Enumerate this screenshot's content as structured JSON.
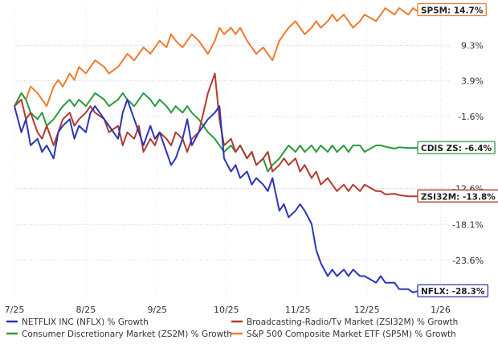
{
  "chart_data": {
    "type": "line",
    "title": "",
    "xlabel": "",
    "ylabel": "",
    "x_ticks": [
      "7/25",
      "8/25",
      "9/25",
      "10/25",
      "11/25",
      "12/25",
      "1/26"
    ],
    "y_ticks": [
      9.3,
      3.9,
      -1.6,
      -12.6,
      -18.1,
      -23.6
    ],
    "y_tick_labels": [
      "9.3%",
      "3.9%",
      "-1.6%",
      "-12.6%",
      "-18.1%",
      "-23.6%"
    ],
    "ylim": [
      -29.5,
      15.5
    ],
    "grid": true,
    "legend_position": "bottom",
    "series": [
      {
        "name": "NETFLIX INC (NFLX) % Growth",
        "color": "#2b35b8",
        "end_label": "NFLX: -28.3%",
        "x": [
          "7/25",
          "7/28",
          "7/30",
          "8/1",
          "8/4",
          "8/6",
          "8/8",
          "8/11",
          "8/13",
          "8/15",
          "8/18",
          "8/20",
          "8/22",
          "8/25",
          "8/27",
          "8/29",
          "9/2",
          "9/4",
          "9/8",
          "9/10",
          "9/12",
          "9/15",
          "9/17",
          "9/19",
          "9/22",
          "9/24",
          "9/26",
          "9/29",
          "10/1",
          "10/3",
          "10/6",
          "10/8",
          "10/10",
          "10/13",
          "10/15",
          "10/17",
          "10/20",
          "10/22",
          "10/24",
          "10/27",
          "10/29",
          "10/31",
          "11/3",
          "11/5",
          "11/7",
          "11/10",
          "11/12",
          "11/14",
          "11/17",
          "11/19",
          "11/21",
          "11/24",
          "11/26",
          "11/28",
          "12/1",
          "12/3",
          "12/5",
          "12/8",
          "12/10",
          "12/12",
          "12/15",
          "12/17",
          "12/19",
          "12/22",
          "12/24",
          "12/29",
          "12/31",
          "1/2",
          "1/6",
          "1/8",
          "1/12",
          "1/14",
          "1/16",
          "1/20",
          "1/22",
          "1/26",
          "1/28",
          "1/30"
        ],
        "values": [
          0,
          -4,
          -2,
          -6,
          -5,
          -7,
          -6,
          -8,
          -4,
          -3,
          -2,
          -5,
          -3,
          -4,
          -1,
          0,
          -2,
          -3,
          -5,
          -1,
          1,
          -2,
          -4,
          -6,
          -3,
          -5,
          -4,
          -7,
          -9,
          -8,
          -5,
          -2,
          -6,
          -4,
          -3,
          -2,
          -1,
          0,
          -8,
          -10,
          -9,
          -11,
          -10,
          -12,
          -11,
          -12,
          -13,
          -11,
          -16,
          -15,
          -17,
          -16,
          -15,
          -16,
          -18,
          -22,
          -24,
          -26,
          -25,
          -26,
          -25,
          -26,
          -25,
          -26,
          -26,
          -27,
          -26,
          -27,
          -27,
          -28,
          -28,
          -28.5,
          -28.3,
          -28.3,
          -28.3,
          -28.3,
          -28.3,
          -28.3
        ]
      },
      {
        "name": "Broadcasting-Radio/Tv Market (ZSI32M) % Growth",
        "color": "#b23a2e",
        "end_label": "ZSI32M: -13.8%",
        "x": [
          "7/25",
          "7/28",
          "7/30",
          "8/1",
          "8/4",
          "8/6",
          "8/8",
          "8/11",
          "8/13",
          "8/15",
          "8/18",
          "8/20",
          "8/22",
          "8/25",
          "8/27",
          "8/29",
          "9/2",
          "9/4",
          "9/8",
          "9/10",
          "9/12",
          "9/15",
          "9/17",
          "9/19",
          "9/22",
          "9/24",
          "9/26",
          "9/29",
          "10/1",
          "10/3",
          "10/6",
          "10/8",
          "10/10",
          "10/13",
          "10/15",
          "10/17",
          "10/20",
          "10/22",
          "10/24",
          "10/27",
          "10/29",
          "10/31",
          "11/3",
          "11/5",
          "11/7",
          "11/10",
          "11/12",
          "11/14",
          "11/17",
          "11/19",
          "11/21",
          "11/24",
          "11/26",
          "11/28",
          "12/1",
          "12/3",
          "12/5",
          "12/8",
          "12/10",
          "12/12",
          "12/15",
          "12/17",
          "12/19",
          "12/22",
          "12/24",
          "12/29",
          "12/31",
          "1/2",
          "1/6",
          "1/8",
          "1/12",
          "1/14",
          "1/16",
          "1/20",
          "1/22",
          "1/26",
          "1/28",
          "1/30"
        ],
        "values": [
          0,
          1,
          -2,
          -1,
          -4,
          -5,
          -3,
          -6,
          -4,
          -2,
          -1,
          -3,
          -2,
          -1,
          0,
          -1,
          -2,
          -4,
          -3,
          -6,
          -4,
          -5,
          -3,
          -7,
          -5,
          -6,
          -4,
          -5,
          -6,
          -4,
          -5,
          -7,
          -5,
          -4,
          -1,
          2,
          5,
          -2,
          -6,
          -5,
          -7,
          -6,
          -8,
          -7,
          -9,
          -8,
          -7,
          -10,
          -9,
          -8,
          -9,
          -8,
          -10,
          -9,
          -11,
          -10,
          -12,
          -11,
          -12,
          -13,
          -12,
          -13,
          -12,
          -13,
          -12,
          -13,
          -13,
          -13.5,
          -13.4,
          -13.6,
          -13.8,
          -13.8,
          -13.8,
          -13.8,
          -13.8,
          -13.8,
          -13.8,
          -13.8
        ]
      },
      {
        "name": "Consumer Discretionary Market (ZS2M) % Growth",
        "color": "#2a9a3e",
        "end_label": "CDIS ZS: -6.4%",
        "x": [
          "7/25",
          "7/28",
          "7/30",
          "8/1",
          "8/4",
          "8/6",
          "8/8",
          "8/11",
          "8/13",
          "8/15",
          "8/18",
          "8/20",
          "8/22",
          "8/25",
          "8/27",
          "8/29",
          "9/2",
          "9/4",
          "9/8",
          "9/10",
          "9/12",
          "9/15",
          "9/17",
          "9/19",
          "9/22",
          "9/24",
          "9/26",
          "9/29",
          "10/1",
          "10/3",
          "10/6",
          "10/8",
          "10/10",
          "10/13",
          "10/15",
          "10/17",
          "10/20",
          "10/22",
          "10/24",
          "10/27",
          "10/29",
          "10/31",
          "11/3",
          "11/5",
          "11/7",
          "11/10",
          "11/12",
          "11/14",
          "11/17",
          "11/19",
          "11/21",
          "11/24",
          "11/26",
          "11/28",
          "12/1",
          "12/3",
          "12/5",
          "12/8",
          "12/10",
          "12/12",
          "12/15",
          "12/17",
          "12/19",
          "12/22",
          "12/24",
          "12/29",
          "12/31",
          "1/2",
          "1/6",
          "1/8",
          "1/12",
          "1/14",
          "1/16",
          "1/20",
          "1/22",
          "1/26",
          "1/28",
          "1/30"
        ],
        "values": [
          0,
          2,
          1,
          -1,
          -2,
          -1,
          -3,
          -2,
          -1,
          0,
          1,
          0,
          1,
          0,
          1,
          2,
          1,
          0,
          1,
          2,
          1,
          0,
          1,
          2,
          1,
          0,
          1,
          0,
          -1,
          0,
          -1,
          0,
          -1,
          -2,
          -3,
          -4,
          -5,
          -6,
          -7,
          -6,
          -7,
          -6,
          -8,
          -7,
          -9,
          -8,
          -10,
          -9,
          -8,
          -7,
          -6,
          -7,
          -6,
          -7,
          -6,
          -7,
          -6,
          -7,
          -6,
          -7,
          -6,
          -7,
          -6,
          -6,
          -7,
          -6,
          -6,
          -6.2,
          -6.5,
          -6.3,
          -6.4,
          -6.4,
          -6.4,
          -6.4,
          -6.4,
          -6.4,
          -6.4,
          -6.4
        ]
      },
      {
        "name": "S&P 500 Composite Market ETF (SP5M) % Growth",
        "color": "#f07a30",
        "end_label": "SP5M: 14.7%",
        "x": [
          "7/25",
          "7/28",
          "7/30",
          "8/1",
          "8/4",
          "8/6",
          "8/8",
          "8/11",
          "8/13",
          "8/15",
          "8/18",
          "8/20",
          "8/22",
          "8/25",
          "8/27",
          "8/29",
          "9/2",
          "9/4",
          "9/8",
          "9/10",
          "9/12",
          "9/15",
          "9/17",
          "9/19",
          "9/22",
          "9/24",
          "9/26",
          "9/29",
          "10/1",
          "10/3",
          "10/6",
          "10/8",
          "10/10",
          "10/13",
          "10/15",
          "10/17",
          "10/20",
          "10/22",
          "10/24",
          "10/27",
          "10/29",
          "10/31",
          "11/3",
          "11/5",
          "11/7",
          "11/10",
          "11/12",
          "11/14",
          "11/17",
          "11/19",
          "11/21",
          "11/24",
          "11/26",
          "11/28",
          "12/1",
          "12/3",
          "12/5",
          "12/8",
          "12/10",
          "12/12",
          "12/15",
          "12/17",
          "12/19",
          "12/22",
          "12/24",
          "12/29",
          "12/31",
          "1/2",
          "1/6",
          "1/8",
          "1/12",
          "1/14",
          "1/16",
          "1/20",
          "1/22",
          "1/26",
          "1/28",
          "1/30"
        ],
        "values": [
          0,
          2,
          1,
          3,
          2,
          1,
          0,
          3,
          4,
          3,
          5,
          4,
          6,
          5,
          6,
          7,
          6,
          5,
          6,
          7,
          8,
          7,
          8,
          9,
          8,
          9,
          10,
          9,
          11,
          10,
          9,
          10,
          11,
          10,
          9,
          8,
          10,
          12,
          11,
          12,
          11,
          12,
          10,
          9,
          8,
          9,
          8,
          7,
          10,
          11,
          12,
          13,
          12,
          11,
          12,
          13,
          12,
          13,
          14,
          13,
          14,
          13,
          12,
          13,
          14,
          13,
          14,
          15,
          14,
          15,
          14,
          15,
          14.5,
          14.6,
          14.7,
          14.7,
          14.7,
          14.7
        ]
      }
    ]
  }
}
